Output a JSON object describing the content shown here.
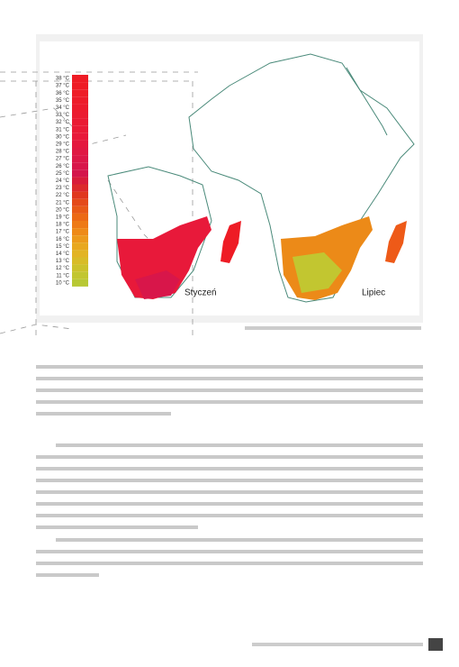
{
  "map": {
    "panels": [
      "Styczeń",
      "Lipiec"
    ],
    "legend": [
      {
        "label": "38 °C",
        "color": "#ee1c25"
      },
      {
        "label": "37 °C",
        "color": "#ee1c25"
      },
      {
        "label": "36 °C",
        "color": "#ee1d27"
      },
      {
        "label": "35 °C",
        "color": "#ed1c2a"
      },
      {
        "label": "34 °C",
        "color": "#ec1b2d"
      },
      {
        "label": "33 °C",
        "color": "#eb1b30"
      },
      {
        "label": "32 °C",
        "color": "#ea1a33"
      },
      {
        "label": "31 °C",
        "color": "#e91a36"
      },
      {
        "label": "30 °C",
        "color": "#e8193a"
      },
      {
        "label": "29 °C",
        "color": "#e4183f"
      },
      {
        "label": "28 °C",
        "color": "#e01843"
      },
      {
        "label": "27 °C",
        "color": "#dc1747"
      },
      {
        "label": "26 °C",
        "color": "#d8164a"
      },
      {
        "label": "25 °C",
        "color": "#d4154b"
      },
      {
        "label": "24 °C",
        "color": "#d81c3a"
      },
      {
        "label": "23 °C",
        "color": "#dc2a2c"
      },
      {
        "label": "22 °C",
        "color": "#e0381f"
      },
      {
        "label": "21 °C",
        "color": "#e44a1a"
      },
      {
        "label": "20 °C",
        "color": "#e85a18"
      },
      {
        "label": "19 °C",
        "color": "#ec6a16"
      },
      {
        "label": "18 °C",
        "color": "#ee7a16"
      },
      {
        "label": "17 °C",
        "color": "#ee8a18"
      },
      {
        "label": "16 °C",
        "color": "#ec9a1c"
      },
      {
        "label": "15 °C",
        "color": "#e8a820"
      },
      {
        "label": "14 °C",
        "color": "#e2b424"
      },
      {
        "label": "13 °C",
        "color": "#d8bc28"
      },
      {
        "label": "12 °C",
        "color": "#ccc22c"
      },
      {
        "label": "11 °C",
        "color": "#c2c630"
      },
      {
        "label": "10 °C",
        "color": "#b8c834"
      }
    ]
  }
}
